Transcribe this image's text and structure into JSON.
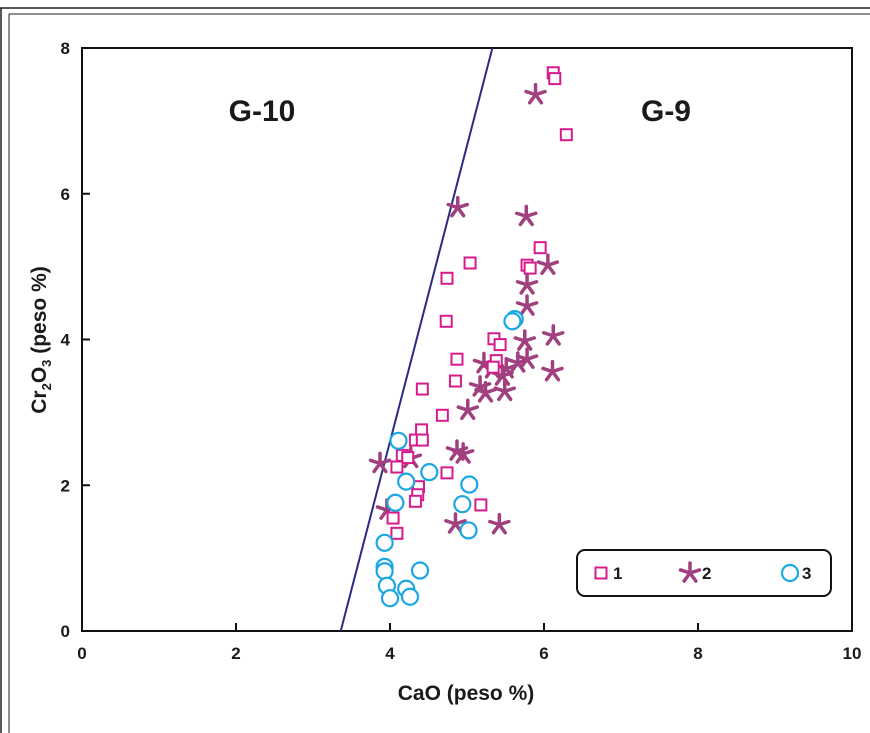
{
  "chart_data": {
    "type": "scatter",
    "xlabel": "CaO (peso %)",
    "ylabel_parts": [
      "Cr",
      "2",
      "O",
      "3",
      " (peso %)"
    ],
    "xlim": [
      0,
      10
    ],
    "ylim": [
      0,
      8
    ],
    "x_ticks": [
      0,
      2,
      4,
      6,
      8,
      10
    ],
    "y_ticks": [
      0,
      2,
      4,
      6,
      8
    ],
    "x_tick_labels": [
      "0",
      "2",
      "4",
      "6",
      "8",
      "10"
    ],
    "y_tick_labels": [
      "0",
      "2",
      "4",
      "6",
      "8"
    ],
    "grid": false,
    "legend_position": "bottom-right",
    "regions": {
      "left": "G-10",
      "right": "G-9"
    },
    "boundary_line": {
      "from": [
        3.36,
        0
      ],
      "to": [
        5.33,
        8
      ],
      "color": "#2b2a85"
    },
    "series": [
      {
        "name": "1",
        "marker": "square",
        "color": "#d81b8c",
        "points": [
          [
            6.12,
            7.66
          ],
          [
            6.14,
            7.58
          ],
          [
            6.29,
            6.81
          ],
          [
            5.95,
            5.26
          ],
          [
            5.04,
            5.05
          ],
          [
            5.78,
            5.02
          ],
          [
            5.82,
            4.98
          ],
          [
            4.74,
            4.84
          ],
          [
            4.73,
            4.25
          ],
          [
            5.35,
            4.01
          ],
          [
            5.43,
            3.93
          ],
          [
            4.87,
            3.73
          ],
          [
            5.38,
            3.71
          ],
          [
            5.34,
            3.62
          ],
          [
            4.85,
            3.43
          ],
          [
            4.42,
            3.32
          ],
          [
            4.68,
            2.96
          ],
          [
            4.41,
            2.76
          ],
          [
            4.33,
            2.62
          ],
          [
            4.42,
            2.62
          ],
          [
            4.16,
            2.41
          ],
          [
            4.23,
            2.38
          ],
          [
            4.09,
            2.25
          ],
          [
            4.74,
            2.17
          ],
          [
            4.37,
            1.98
          ],
          [
            4.36,
            1.87
          ],
          [
            4.33,
            1.78
          ],
          [
            5.18,
            1.73
          ],
          [
            4.04,
            1.55
          ],
          [
            4.09,
            1.34
          ]
        ]
      },
      {
        "name": "2",
        "marker": "asterisk",
        "color": "#a0407f",
        "points": [
          [
            5.89,
            7.36
          ],
          [
            4.88,
            5.81
          ],
          [
            5.77,
            5.69
          ],
          [
            6.05,
            5.02
          ],
          [
            5.78,
            4.75
          ],
          [
            5.78,
            4.46
          ],
          [
            6.12,
            4.05
          ],
          [
            5.75,
            3.98
          ],
          [
            5.22,
            3.67
          ],
          [
            5.66,
            3.68
          ],
          [
            5.78,
            3.73
          ],
          [
            5.33,
            3.6
          ],
          [
            5.51,
            3.6
          ],
          [
            6.11,
            3.56
          ],
          [
            5.46,
            3.5
          ],
          [
            5.17,
            3.35
          ],
          [
            5.24,
            3.27
          ],
          [
            5.49,
            3.29
          ],
          [
            5.01,
            3.03
          ],
          [
            4.87,
            2.47
          ],
          [
            4.95,
            2.43
          ],
          [
            3.87,
            2.3
          ],
          [
            4.27,
            2.37
          ],
          [
            3.96,
            1.66
          ],
          [
            4.85,
            1.47
          ],
          [
            5.42,
            1.46
          ]
        ]
      },
      {
        "name": "3",
        "marker": "circle",
        "color": "#1ba7e3",
        "points": [
          [
            5.62,
            4.28
          ],
          [
            5.59,
            4.25
          ],
          [
            4.11,
            2.61
          ],
          [
            4.51,
            2.18
          ],
          [
            4.21,
            2.05
          ],
          [
            5.03,
            2.01
          ],
          [
            4.07,
            1.76
          ],
          [
            4.94,
            1.74
          ],
          [
            5.02,
            1.38
          ],
          [
            3.93,
            1.21
          ],
          [
            3.93,
            0.88
          ],
          [
            3.93,
            0.82
          ],
          [
            4.39,
            0.83
          ],
          [
            3.96,
            0.62
          ],
          [
            4.21,
            0.58
          ],
          [
            4.0,
            0.45
          ],
          [
            4.26,
            0.47
          ]
        ]
      }
    ]
  }
}
